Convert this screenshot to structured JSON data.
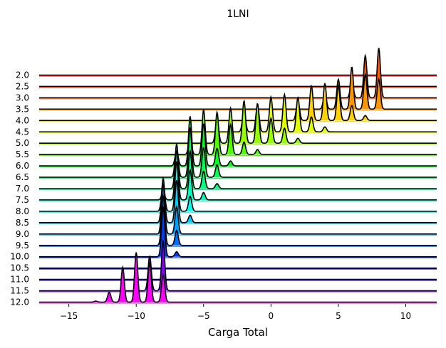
{
  "chart_data": {
    "type": "area",
    "title": "1LNI",
    "xlabel": "Carga Total",
    "ylabel": "",
    "xlim": [
      -17.2,
      12.3
    ],
    "x_ticks": [
      -15,
      -10,
      -5,
      0,
      5,
      10
    ],
    "x_tick_labels": [
      "−15",
      "−10",
      "−5",
      "0",
      "5",
      "10"
    ],
    "row_labels": [
      "2.0",
      "2.5",
      "3.0",
      "3.5",
      "4.0",
      "4.5",
      "5.0",
      "5.5",
      "6.0",
      "6.5",
      "7.0",
      "7.5",
      "8.0",
      "8.5",
      "9.0",
      "9.5",
      "10.0",
      "10.5",
      "11.0",
      "11.5",
      "12.0"
    ],
    "grid": false,
    "legend": "none",
    "colormap": "gist_rainbow",
    "series": [
      {
        "label": "2.0",
        "color": "#ff0000",
        "peaks": []
      },
      {
        "label": "2.5",
        "color": "#ff2800",
        "peaks": []
      },
      {
        "label": "3.0",
        "color": "#ff5a00",
        "peaks": [
          [
            6,
            0.3
          ],
          [
            7,
            0.85
          ],
          [
            8,
            1.0
          ]
        ]
      },
      {
        "label": "3.5",
        "color": "#ff9600",
        "peaks": [
          [
            4,
            0.3
          ],
          [
            5,
            0.6
          ],
          [
            6,
            0.85
          ],
          [
            7,
            0.7
          ],
          [
            8,
            0.6
          ]
        ]
      },
      {
        "label": "4.0",
        "color": "#ffd200",
        "peaks": [
          [
            2,
            0.4
          ],
          [
            3,
            0.7
          ],
          [
            4,
            0.75
          ],
          [
            5,
            0.7
          ],
          [
            6,
            0.3
          ],
          [
            7,
            0.1
          ]
        ]
      },
      {
        "label": "4.5",
        "color": "#e1ff00",
        "peaks": [
          [
            -2,
            0.4
          ],
          [
            -1,
            0.55
          ],
          [
            0,
            0.7
          ],
          [
            1,
            0.75
          ],
          [
            2,
            0.7
          ],
          [
            3,
            0.3
          ],
          [
            4,
            0.1
          ]
        ]
      },
      {
        "label": "5.0",
        "color": "#96ff00",
        "peaks": [
          [
            -4,
            0.5
          ],
          [
            -3,
            0.7
          ],
          [
            -2,
            0.85
          ],
          [
            -1,
            0.8
          ],
          [
            0,
            0.5
          ],
          [
            1,
            0.3
          ],
          [
            2,
            0.1
          ]
        ]
      },
      {
        "label": "5.5",
        "color": "#50ff00",
        "peaks": [
          [
            -6,
            0.3
          ],
          [
            -5,
            0.9
          ],
          [
            -4,
            0.85
          ],
          [
            -3,
            0.6
          ],
          [
            -2,
            0.25
          ],
          [
            -1,
            0.1
          ]
        ]
      },
      {
        "label": "6.0",
        "color": "#00ff1e",
        "peaks": [
          [
            -7,
            0.3
          ],
          [
            -6,
            1.0
          ],
          [
            -5,
            0.85
          ],
          [
            -4,
            0.35
          ],
          [
            -3,
            0.1
          ]
        ]
      },
      {
        "label": "6.5",
        "color": "#00ff50",
        "peaks": [
          [
            -7,
            0.6
          ],
          [
            -6,
            1.0
          ],
          [
            -5,
            0.6
          ],
          [
            -4,
            0.25
          ]
        ]
      },
      {
        "label": "7.0",
        "color": "#00ff82",
        "peaks": [
          [
            -7,
            0.9
          ],
          [
            -6,
            0.75
          ],
          [
            -5,
            0.35
          ],
          [
            -4,
            0.1
          ]
        ]
      },
      {
        "label": "7.5",
        "color": "#00ffbe",
        "peaks": [
          [
            -8,
            0.15
          ],
          [
            -7,
            1.0
          ],
          [
            -6,
            0.6
          ],
          [
            -5,
            0.15
          ]
        ]
      },
      {
        "label": "8.0",
        "color": "#00fff0",
        "peaks": [
          [
            -8,
            0.6
          ],
          [
            -7,
            1.0
          ],
          [
            -6,
            0.3
          ]
        ]
      },
      {
        "label": "8.5",
        "color": "#00d2ff",
        "peaks": [
          [
            -8,
            0.9
          ],
          [
            -7,
            0.85
          ],
          [
            -6,
            0.15
          ]
        ]
      },
      {
        "label": "9.0",
        "color": "#00a0ff",
        "peaks": [
          [
            -8,
            1.0
          ],
          [
            -7,
            0.55
          ]
        ]
      },
      {
        "label": "9.5",
        "color": "#006eff",
        "peaks": [
          [
            -8,
            1.0
          ],
          [
            -7,
            0.3
          ]
        ]
      },
      {
        "label": "10.0",
        "color": "#003cff",
        "peaks": [
          [
            -8,
            1.0
          ],
          [
            -7,
            0.1
          ]
        ]
      },
      {
        "label": "10.5",
        "color": "#0a00ff",
        "peaks": []
      },
      {
        "label": "11.0",
        "color": "#3c00ff",
        "peaks": []
      },
      {
        "label": "11.5",
        "color": "#8c00ff",
        "peaks": [
          [
            -9,
            0.7
          ],
          [
            -8,
            1.0
          ]
        ]
      },
      {
        "label": "12.0",
        "color": "#ff00ff",
        "peaks": [
          [
            -13,
            0.02
          ],
          [
            -12,
            0.2
          ],
          [
            -11,
            0.7
          ],
          [
            -10,
            1.0
          ],
          [
            -9,
            0.8
          ],
          [
            -8,
            0.55
          ]
        ]
      }
    ]
  }
}
